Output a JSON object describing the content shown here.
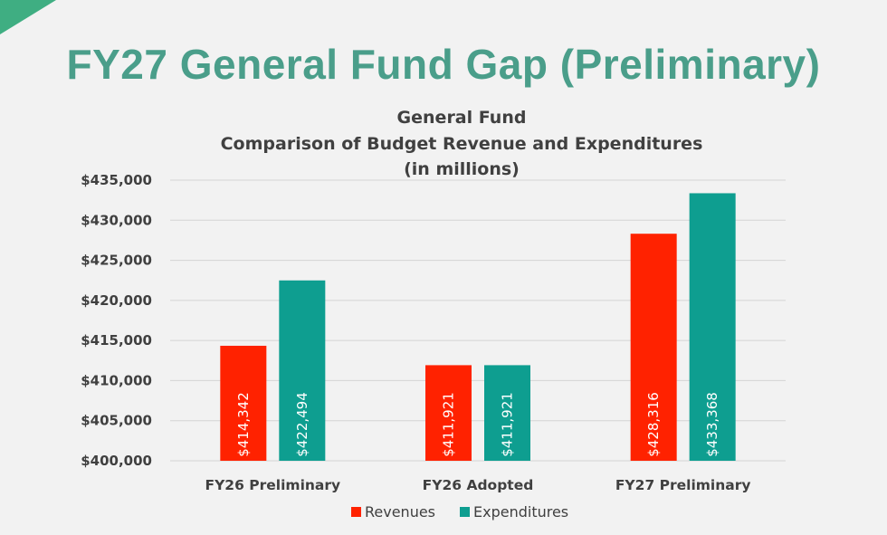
{
  "slide": {
    "title": "FY27 General Fund Gap (Preliminary)",
    "accent": "#4a9e8a",
    "corner_color": "#3fae82"
  },
  "chart_data": {
    "type": "bar",
    "title": [
      "General Fund",
      "Comparison of Budget Revenue and Expenditures",
      "(in millions)"
    ],
    "xlabel": "",
    "ylabel": "",
    "categories": [
      "FY26 Preliminary",
      "FY26 Adopted",
      "FY27 Preliminary"
    ],
    "series": [
      {
        "name": "Revenues",
        "color": "#ff2200",
        "values": [
          414342,
          411921,
          428316
        ],
        "labels": [
          "$414,342",
          "$411,921",
          "$428,316"
        ]
      },
      {
        "name": "Expenditures",
        "color": "#0e9e90",
        "values": [
          422494,
          411921,
          433368
        ],
        "labels": [
          "$422,494",
          "$411,921",
          "$433,368"
        ]
      }
    ],
    "ylim": [
      400000,
      435000
    ],
    "yticks": [
      400000,
      405000,
      410000,
      415000,
      420000,
      425000,
      430000,
      435000
    ],
    "ytick_labels": [
      "$400,000",
      "$405,000",
      "$410,000",
      "$415,000",
      "$420,000",
      "$425,000",
      "$430,000",
      "$435,000"
    ],
    "grid": true,
    "legend_position": "bottom"
  }
}
